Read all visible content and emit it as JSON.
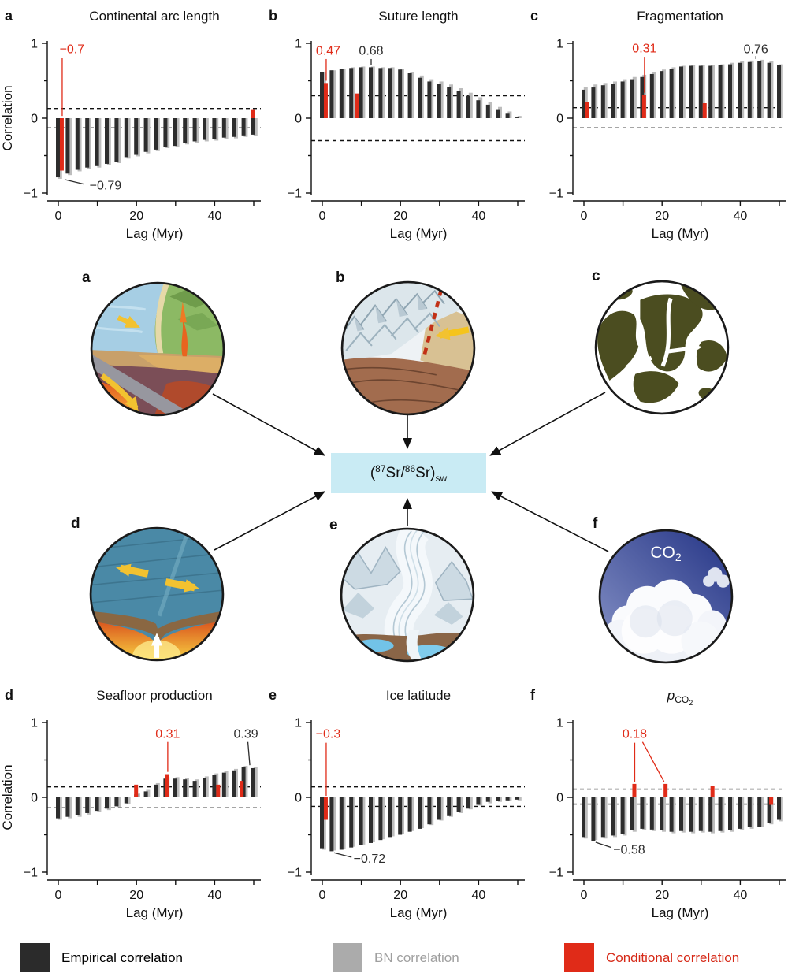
{
  "colors": {
    "empirical": "#2d2d2d",
    "bn": "#bdbdbd",
    "conditional": "#e02b18",
    "box_fill": "#c9ebf4",
    "axis": "#111111"
  },
  "axis": {
    "yticks": [
      {
        "v": 1,
        "label": "1"
      },
      {
        "v": 0.5,
        "label": ""
      },
      {
        "v": 0,
        "label": "0"
      },
      {
        "v": -0.5,
        "label": ""
      },
      {
        "v": -1,
        "label": "−1"
      }
    ],
    "xticks": [
      {
        "v": 0,
        "label": "0"
      },
      {
        "v": 10,
        "label": ""
      },
      {
        "v": 20,
        "label": "20"
      },
      {
        "v": 30,
        "label": ""
      },
      {
        "v": 40,
        "label": "40"
      },
      {
        "v": 50,
        "label": ""
      }
    ]
  },
  "chart_data": [
    {
      "type": "bar",
      "panel": "a",
      "title": "Continental arc length",
      "xlabel": "Lag (Myr)",
      "ylabel": "Correlation",
      "ylim": [
        -1,
        1
      ],
      "xlim": [
        0,
        52
      ],
      "dashed_lines": [
        0.13,
        -0.13
      ],
      "lags": [
        0,
        2.5,
        5,
        7.5,
        10,
        12.5,
        15,
        17.5,
        20,
        22.5,
        25,
        27.5,
        30,
        32.5,
        35,
        37.5,
        40,
        42.5,
        45,
        47.5,
        50
      ],
      "series": [
        {
          "name": "Empirical correlation",
          "values": [
            -0.79,
            -0.74,
            -0.69,
            -0.66,
            -0.64,
            -0.61,
            -0.58,
            -0.52,
            -0.49,
            -0.45,
            -0.42,
            -0.38,
            -0.37,
            -0.33,
            -0.31,
            -0.29,
            -0.28,
            -0.26,
            -0.25,
            -0.23,
            -0.22
          ]
        },
        {
          "name": "BN correlation",
          "values": [
            -0.81,
            -0.76,
            -0.71,
            -0.68,
            -0.66,
            -0.63,
            -0.6,
            -0.54,
            -0.51,
            -0.47,
            -0.44,
            -0.4,
            -0.39,
            -0.35,
            -0.33,
            -0.31,
            -0.3,
            -0.28,
            -0.27,
            -0.25,
            -0.24
          ]
        },
        {
          "name": "Conditional correlation",
          "points": [
            {
              "lag": 1,
              "value": -0.7
            },
            {
              "lag": 50,
              "value": 0.12
            }
          ]
        }
      ],
      "annotations": [
        {
          "text": "−0.7",
          "color": "conditional",
          "x": 3.5,
          "y": 0.92,
          "anchor": "middle",
          "leaders": [
            [
              1,
              0.8,
              1,
              0.03
            ]
          ]
        },
        {
          "text": "−0.79",
          "color": "empirical",
          "x": 8,
          "y": -0.9,
          "anchor": "start",
          "leaders": [
            [
              1.6,
              -0.82,
              6.5,
              -0.88
            ]
          ]
        }
      ]
    },
    {
      "type": "bar",
      "panel": "b",
      "title": "Suture length",
      "xlabel": "Lag (Myr)",
      "ylabel": "",
      "ylim": [
        -1,
        1
      ],
      "xlim": [
        0,
        52
      ],
      "dashed_lines": [
        0.3,
        -0.3
      ],
      "lags": [
        0,
        2.5,
        5,
        7.5,
        10,
        12.5,
        15,
        17.5,
        20,
        22.5,
        25,
        27.5,
        30,
        32.5,
        35,
        37.5,
        40,
        42.5,
        45,
        47.5,
        50
      ],
      "series": [
        {
          "name": "Empirical correlation",
          "values": [
            0.62,
            0.64,
            0.66,
            0.67,
            0.68,
            0.68,
            0.67,
            0.67,
            0.65,
            0.6,
            0.54,
            0.49,
            0.46,
            0.42,
            0.36,
            0.3,
            0.24,
            0.18,
            0.12,
            0.06,
            0.01
          ]
        },
        {
          "name": "BN correlation",
          "values": [
            0.61,
            0.64,
            0.66,
            0.68,
            0.69,
            0.69,
            0.68,
            0.68,
            0.66,
            0.62,
            0.57,
            0.52,
            0.49,
            0.45,
            0.4,
            0.34,
            0.28,
            0.22,
            0.15,
            0.09,
            0.03
          ]
        },
        {
          "name": "Conditional correlation",
          "points": [
            {
              "lag": 1,
              "value": 0.47
            },
            {
              "lag": 9,
              "value": 0.33
            }
          ]
        }
      ],
      "annotations": [
        {
          "text": "0.47",
          "color": "conditional",
          "x": 1.5,
          "y": 0.9,
          "anchor": "middle",
          "leaders": [
            [
              1,
              0.79,
              1,
              0.5
            ]
          ]
        },
        {
          "text": "0.68",
          "color": "empirical",
          "x": 12.5,
          "y": 0.9,
          "anchor": "middle",
          "leaders": [
            [
              12.5,
              0.79,
              12.5,
              0.71
            ]
          ]
        }
      ]
    },
    {
      "type": "bar",
      "panel": "c",
      "title": "Fragmentation",
      "xlabel": "Lag (Myr)",
      "ylabel": "",
      "ylim": [
        -1,
        1
      ],
      "xlim": [
        0,
        52
      ],
      "dashed_lines": [
        0.14,
        -0.13
      ],
      "lags": [
        0,
        2.5,
        5,
        7.5,
        10,
        12.5,
        15,
        17.5,
        20,
        22.5,
        25,
        27.5,
        30,
        32.5,
        35,
        37.5,
        40,
        42.5,
        45,
        47.5,
        50
      ],
      "series": [
        {
          "name": "Empirical correlation",
          "values": [
            0.38,
            0.41,
            0.44,
            0.46,
            0.49,
            0.52,
            0.55,
            0.59,
            0.63,
            0.66,
            0.69,
            0.7,
            0.7,
            0.7,
            0.71,
            0.72,
            0.74,
            0.75,
            0.76,
            0.74,
            0.71
          ]
        },
        {
          "name": "BN correlation",
          "values": [
            0.42,
            0.45,
            0.47,
            0.49,
            0.52,
            0.55,
            0.58,
            0.62,
            0.65,
            0.68,
            0.7,
            0.71,
            0.71,
            0.71,
            0.72,
            0.74,
            0.76,
            0.77,
            0.78,
            0.76,
            0.72
          ]
        },
        {
          "name": "Conditional correlation",
          "points": [
            {
              "lag": 1,
              "value": 0.22
            },
            {
              "lag": 15.5,
              "value": 0.31
            },
            {
              "lag": 31,
              "value": 0.2
            }
          ]
        }
      ],
      "annotations": [
        {
          "text": "0.31",
          "color": "conditional",
          "x": 15.5,
          "y": 0.93,
          "anchor": "middle",
          "leaders": [
            [
              15.5,
              0.82,
              15.5,
              0.34
            ]
          ]
        },
        {
          "text": "0.76",
          "color": "empirical",
          "x": 44,
          "y": 0.92,
          "anchor": "middle",
          "leaders": [
            [
              44,
              0.83,
              44,
              0.79
            ]
          ]
        }
      ]
    },
    {
      "type": "bar",
      "panel": "d",
      "title": "Seafloor production",
      "xlabel": "Lag (Myr)",
      "ylabel": "Correlation",
      "ylim": [
        -1,
        1
      ],
      "xlim": [
        0,
        52
      ],
      "dashed_lines": [
        0.14,
        -0.14
      ],
      "lags": [
        0,
        2.5,
        5,
        7.5,
        10,
        12.5,
        15,
        17.5,
        20,
        22.5,
        25,
        27.5,
        30,
        32.5,
        35,
        37.5,
        40,
        42.5,
        45,
        47.5,
        50
      ],
      "series": [
        {
          "name": "Empirical correlation",
          "values": [
            -0.28,
            -0.26,
            -0.24,
            -0.21,
            -0.18,
            -0.15,
            -0.12,
            -0.08,
            0.04,
            0.08,
            0.17,
            0.25,
            0.25,
            0.24,
            0.22,
            0.26,
            0.3,
            0.33,
            0.36,
            0.4,
            0.39
          ]
        },
        {
          "name": "BN correlation",
          "values": [
            -0.3,
            -0.28,
            -0.26,
            -0.23,
            -0.2,
            -0.17,
            -0.13,
            -0.09,
            0.05,
            0.1,
            0.19,
            0.27,
            0.27,
            0.26,
            0.24,
            0.28,
            0.32,
            0.35,
            0.38,
            0.42,
            0.41
          ]
        },
        {
          "name": "Conditional correlation",
          "points": [
            {
              "lag": 20,
              "value": 0.17
            },
            {
              "lag": 28,
              "value": 0.31
            },
            {
              "lag": 41,
              "value": 0.17
            },
            {
              "lag": 47,
              "value": 0.22
            }
          ]
        }
      ],
      "annotations": [
        {
          "text": "0.31",
          "color": "conditional",
          "x": 28,
          "y": 0.85,
          "anchor": "middle",
          "leaders": [
            [
              28,
              0.74,
              28,
              0.34
            ]
          ]
        },
        {
          "text": "0.39",
          "color": "empirical",
          "x": 48,
          "y": 0.85,
          "anchor": "middle",
          "leaders": [
            [
              48.5,
              0.74,
              49,
              0.43
            ]
          ]
        }
      ]
    },
    {
      "type": "bar",
      "panel": "e",
      "title": "Ice latitude",
      "xlabel": "Lag (Myr)",
      "ylabel": "",
      "ylim": [
        -1,
        1
      ],
      "xlim": [
        0,
        52
      ],
      "dashed_lines": [
        0.14,
        -0.12
      ],
      "lags": [
        0,
        2.5,
        5,
        7.5,
        10,
        12.5,
        15,
        17.5,
        20,
        22.5,
        25,
        27.5,
        30,
        32.5,
        35,
        37.5,
        40,
        42.5,
        45,
        47.5,
        50
      ],
      "series": [
        {
          "name": "Empirical correlation",
          "values": [
            -0.68,
            -0.72,
            -0.7,
            -0.67,
            -0.64,
            -0.61,
            -0.57,
            -0.53,
            -0.5,
            -0.46,
            -0.42,
            -0.36,
            -0.3,
            -0.25,
            -0.2,
            -0.15,
            -0.1,
            -0.06,
            -0.05,
            -0.04,
            -0.03
          ]
        },
        {
          "name": "BN correlation",
          "values": [
            -0.7,
            -0.71,
            -0.69,
            -0.66,
            -0.63,
            -0.6,
            -0.56,
            -0.52,
            -0.49,
            -0.45,
            -0.41,
            -0.37,
            -0.31,
            -0.26,
            -0.21,
            -0.16,
            -0.11,
            -0.08,
            -0.06,
            -0.05,
            -0.04
          ]
        },
        {
          "name": "Conditional correlation",
          "points": [
            {
              "lag": 1,
              "value": -0.3
            }
          ]
        }
      ],
      "annotations": [
        {
          "text": "−0.3",
          "color": "conditional",
          "x": 1.5,
          "y": 0.85,
          "anchor": "middle",
          "leaders": [
            [
              1,
              0.73,
              1,
              0.02
            ]
          ]
        },
        {
          "text": "−0.72",
          "color": "empirical",
          "x": 8,
          "y": -0.82,
          "anchor": "start",
          "leaders": [
            [
              3,
              -0.74,
              7.5,
              -0.8
            ]
          ]
        }
      ]
    },
    {
      "type": "bar",
      "panel": "f",
      "title": "pCO2",
      "title_rich": [
        {
          "t": "p",
          "s": "i"
        },
        {
          "t": "CO",
          "s": "sub"
        },
        {
          "t": "2",
          "s": "subsub"
        }
      ],
      "xlabel": "Lag (Myr)",
      "ylabel": "",
      "ylim": [
        -1,
        1
      ],
      "xlim": [
        0,
        52
      ],
      "dashed_lines": [
        0.11,
        -0.09
      ],
      "lags": [
        0,
        2.5,
        5,
        7.5,
        10,
        12.5,
        15,
        17.5,
        20,
        22.5,
        25,
        27.5,
        30,
        32.5,
        35,
        37.5,
        40,
        42.5,
        45,
        47.5,
        50
      ],
      "series": [
        {
          "name": "Empirical correlation",
          "values": [
            -0.53,
            -0.58,
            -0.53,
            -0.51,
            -0.49,
            -0.44,
            -0.42,
            -0.43,
            -0.44,
            -0.46,
            -0.45,
            -0.46,
            -0.45,
            -0.46,
            -0.45,
            -0.44,
            -0.42,
            -0.4,
            -0.39,
            -0.34,
            -0.3
          ]
        },
        {
          "name": "BN correlation",
          "values": [
            -0.55,
            -0.57,
            -0.55,
            -0.53,
            -0.51,
            -0.46,
            -0.44,
            -0.45,
            -0.46,
            -0.48,
            -0.47,
            -0.48,
            -0.47,
            -0.48,
            -0.47,
            -0.46,
            -0.44,
            -0.42,
            -0.4,
            -0.36,
            -0.32
          ]
        },
        {
          "name": "Conditional correlation",
          "points": [
            {
              "lag": 13,
              "value": 0.18
            },
            {
              "lag": 21,
              "value": 0.18
            },
            {
              "lag": 33,
              "value": 0.15
            },
            {
              "lag": 48,
              "value": -0.1
            }
          ]
        }
      ],
      "annotations": [
        {
          "text": "0.18",
          "color": "conditional",
          "x": 13,
          "y": 0.85,
          "anchor": "middle",
          "leaders": [
            [
              13,
              0.73,
              13,
              0.21
            ],
            [
              15,
              0.74,
              20.5,
              0.21
            ]
          ]
        },
        {
          "text": "−0.58",
          "color": "empirical",
          "x": 7.5,
          "y": -0.7,
          "anchor": "start",
          "leaders": [
            [
              3,
              -0.6,
              7,
              -0.67
            ]
          ]
        }
      ]
    }
  ],
  "diagram": {
    "center_box": {
      "formula": [
        {
          "t": "("
        },
        {
          "t": "87",
          "s": "sup"
        },
        {
          "t": "Sr/"
        },
        {
          "t": "86",
          "s": "sup"
        },
        {
          "t": "Sr)"
        },
        {
          "t": "sw",
          "s": "sub"
        }
      ]
    },
    "circles": [
      {
        "label": "a",
        "name": "subduction-arc"
      },
      {
        "label": "b",
        "name": "suture-mountains"
      },
      {
        "label": "c",
        "name": "fragmentation-globe"
      },
      {
        "label": "d",
        "name": "seafloor-spreading"
      },
      {
        "label": "e",
        "name": "glacier"
      },
      {
        "label": "f",
        "name": "co2-clouds",
        "overlay": [
          {
            "t": "CO"
          },
          {
            "t": "2",
            "s": "sub"
          }
        ]
      }
    ]
  },
  "legend": {
    "items": [
      {
        "label": "Empirical correlation",
        "swatch": "#2b2b2b",
        "text_color": "#000000"
      },
      {
        "label": "BN correlation",
        "swatch": "#ababab",
        "text_color": "#9f9f9f"
      },
      {
        "label": "Conditional correlation",
        "swatch": "#e02b18",
        "text_color": "#d62a18"
      }
    ]
  }
}
